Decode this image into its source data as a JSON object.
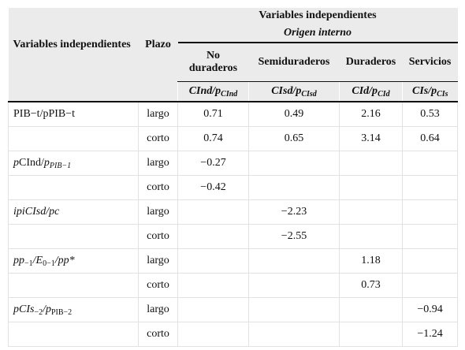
{
  "header": {
    "row_label": "Variables independientes",
    "term": "Plazo",
    "group": "Variables independientes",
    "subgroup": "Origen interno",
    "columns": [
      {
        "name": "No duraderos",
        "symbol": [
          "CInd/p",
          "CInd"
        ]
      },
      {
        "name": "Semiduraderos",
        "symbol": [
          "CIsd/p",
          "CIsd"
        ]
      },
      {
        "name": "Duraderos",
        "symbol": [
          "CId/p",
          "CId"
        ]
      },
      {
        "name": "Servicios",
        "symbol": [
          "CIs/p",
          "CIs"
        ]
      }
    ]
  },
  "rows": [
    {
      "label": [
        "PIB−t/pPIB−t"
      ],
      "term": "largo",
      "values": [
        "0.71",
        "0.49",
        "2.16",
        "0.53"
      ]
    },
    {
      "term": "corto",
      "values": [
        "0.74",
        "0.65",
        "3.14",
        "0.64"
      ]
    },
    {
      "label": [
        "p",
        "CInd/",
        "p",
        "PIB−1"
      ],
      "term": "largo",
      "values": [
        "−0.27",
        null,
        null,
        null
      ]
    },
    {
      "term": "corto",
      "values": [
        "−0.42",
        null,
        null,
        null
      ]
    },
    {
      "label": [
        "ipiCIsd/pc"
      ],
      "term": "largo",
      "values": [
        null,
        "−2.23",
        null,
        null
      ]
    },
    {
      "term": "corto",
      "values": [
        null,
        "−2.55",
        null,
        null
      ]
    },
    {
      "label": [
        "pp",
        "−1",
        "/E",
        "0−1",
        "/pp*"
      ],
      "term": "largo",
      "values": [
        null,
        null,
        "1.18",
        null
      ]
    },
    {
      "term": "corto",
      "values": [
        null,
        null,
        "0.73",
        null
      ]
    },
    {
      "label": [
        "pCIs",
        "−2",
        "/p",
        "PIB−2"
      ],
      "term": "largo",
      "values": [
        null,
        null,
        null,
        "−0.94"
      ]
    },
    {
      "term": "corto",
      "values": [
        null,
        null,
        null,
        "−1.24"
      ]
    }
  ]
}
